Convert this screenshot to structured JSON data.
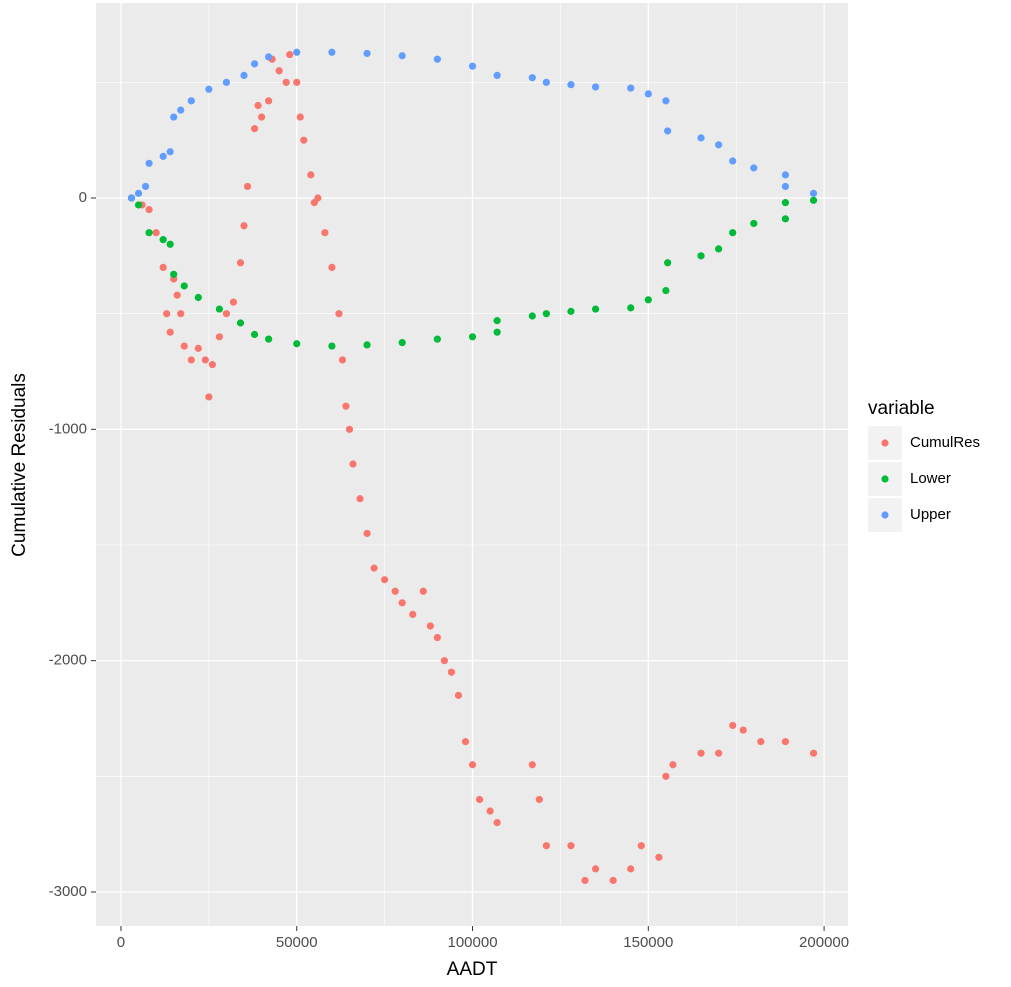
{
  "chart_data": {
    "type": "scatter",
    "x_label": "AADT",
    "y_label": "Cumulative Residuals",
    "legend_title": "variable",
    "legend_position": "right",
    "xlim": [
      -7100,
      206800
    ],
    "ylim": [
      -3147,
      843
    ],
    "xticks": [
      0,
      50000,
      100000,
      150000,
      200000
    ],
    "yticks": [
      -3000,
      -2000,
      -1000,
      0
    ],
    "x_minor_grid": [
      25000,
      75000,
      125000,
      175000
    ],
    "y_minor_grid": [
      -2500,
      -1500,
      -500,
      500
    ],
    "grid": true,
    "series": [
      {
        "name": "CumulRes",
        "color": "#f8766d",
        "x": [
          3000,
          6000,
          8000,
          10000,
          12000,
          13000,
          14000,
          15000,
          16000,
          17000,
          18000,
          20000,
          22000,
          24000,
          25000,
          26000,
          28000,
          30000,
          32000,
          34000,
          35000,
          36000,
          38000,
          39000,
          40000,
          42000,
          43000,
          45000,
          47000,
          48000,
          50000,
          51000,
          52000,
          54000,
          55000,
          56000,
          58000,
          60000,
          62000,
          63000,
          64000,
          65000,
          66000,
          68000,
          70000,
          72000,
          75000,
          78000,
          80000,
          83000,
          86000,
          88000,
          90000,
          92000,
          94000,
          96000,
          98000,
          100000,
          102000,
          105000,
          107000,
          117000,
          119000,
          121000,
          128000,
          132000,
          135000,
          140000,
          145000,
          148000,
          153000,
          155000,
          157000,
          165000,
          170000,
          174000,
          177000,
          182000,
          189000,
          197000
        ],
        "values": [
          0,
          -30,
          -50,
          -150,
          -300,
          -500,
          -580,
          -350,
          -420,
          -500,
          -640,
          -700,
          -650,
          -700,
          -860,
          -720,
          -600,
          -500,
          -450,
          -280,
          -120,
          50,
          300,
          400,
          350,
          420,
          600,
          550,
          500,
          620,
          500,
          350,
          250,
          100,
          -20,
          0,
          -150,
          -300,
          -500,
          -700,
          -900,
          -1000,
          -1150,
          -1300,
          -1450,
          -1600,
          -1650,
          -1700,
          -1750,
          -1800,
          -1700,
          -1850,
          -1900,
          -2000,
          -2050,
          -2150,
          -2350,
          -2450,
          -2600,
          -2650,
          -2700,
          -2450,
          -2600,
          -2800,
          -2800,
          -2950,
          -2900,
          -2950,
          -2900,
          -2800,
          -2850,
          -2500,
          -2450,
          -2400,
          -2400,
          -2280,
          -2300,
          -2350,
          -2350,
          -2400
        ]
      },
      {
        "name": "Lower",
        "color": "#00ba38",
        "x": [
          3000,
          5000,
          8000,
          12000,
          14000,
          15000,
          18000,
          22000,
          28000,
          34000,
          38000,
          42000,
          50000,
          60000,
          70000,
          80000,
          90000,
          100000,
          107000,
          107000,
          117000,
          121000,
          128000,
          135000,
          145000,
          150000,
          155000,
          155500,
          165000,
          170000,
          174000,
          180000,
          189000,
          189000,
          197000
        ],
        "values": [
          0,
          -30,
          -150,
          -180,
          -200,
          -330,
          -380,
          -430,
          -480,
          -540,
          -590,
          -610,
          -630,
          -640,
          -635,
          -625,
          -610,
          -600,
          -580,
          -530,
          -510,
          -500,
          -490,
          -480,
          -475,
          -440,
          -400,
          -280,
          -250,
          -220,
          -150,
          -110,
          -90,
          -20,
          -10
        ]
      },
      {
        "name": "Upper",
        "color": "#619cff",
        "x": [
          3000,
          5000,
          7000,
          8000,
          12000,
          14000,
          15000,
          17000,
          20000,
          25000,
          30000,
          35000,
          38000,
          42000,
          50000,
          60000,
          70000,
          80000,
          90000,
          100000,
          107000,
          117000,
          121000,
          128000,
          135000,
          145000,
          150000,
          155000,
          155500,
          165000,
          170000,
          174000,
          180000,
          189000,
          189000,
          197000
        ],
        "values": [
          0,
          20,
          50,
          150,
          180,
          200,
          350,
          380,
          420,
          470,
          500,
          530,
          580,
          610,
          630,
          630,
          625,
          615,
          600,
          570,
          530,
          520,
          500,
          490,
          480,
          475,
          450,
          420,
          290,
          260,
          230,
          160,
          130,
          100,
          50,
          20
        ]
      }
    ]
  }
}
